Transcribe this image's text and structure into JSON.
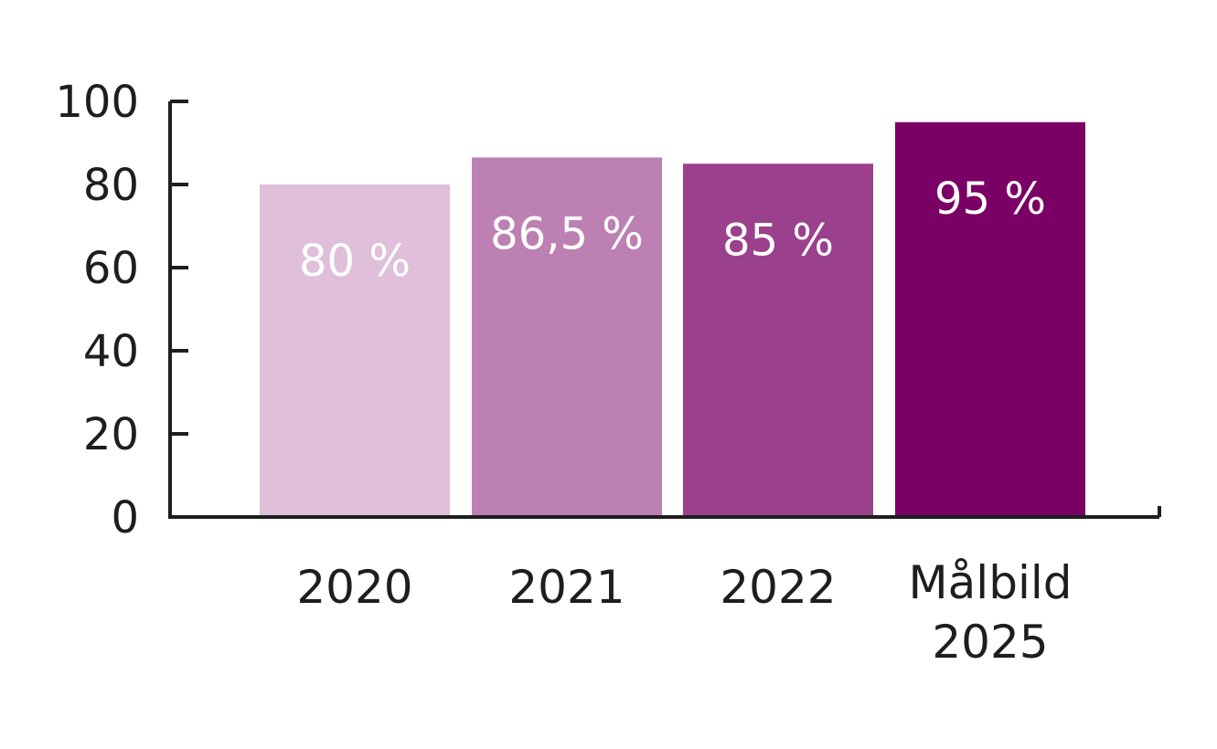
{
  "chart_data": {
    "type": "bar",
    "categories": [
      "2020",
      "2021",
      "2022",
      "Målbild 2025"
    ],
    "category_lines": [
      [
        "2020"
      ],
      [
        "2021"
      ],
      [
        "2022"
      ],
      [
        "Målbild",
        "2025"
      ]
    ],
    "values": [
      80,
      86.5,
      85,
      95
    ],
    "data_labels": [
      "80 %",
      "86,5 %",
      "85 %",
      "95 %"
    ],
    "colors": [
      "#dfbfd9",
      "#bd80b3",
      "#9a408d",
      "#7a0066"
    ],
    "label_color": "#ffffff",
    "axis_color": "#1e1e1e",
    "yticks": [
      "0",
      "20",
      "40",
      "60",
      "80",
      "100"
    ],
    "ytick_values": [
      0,
      20,
      40,
      60,
      80,
      100
    ],
    "ylim": [
      0,
      100
    ],
    "title": "",
    "xlabel": "",
    "ylabel": "",
    "grid": false,
    "legend": "none"
  }
}
